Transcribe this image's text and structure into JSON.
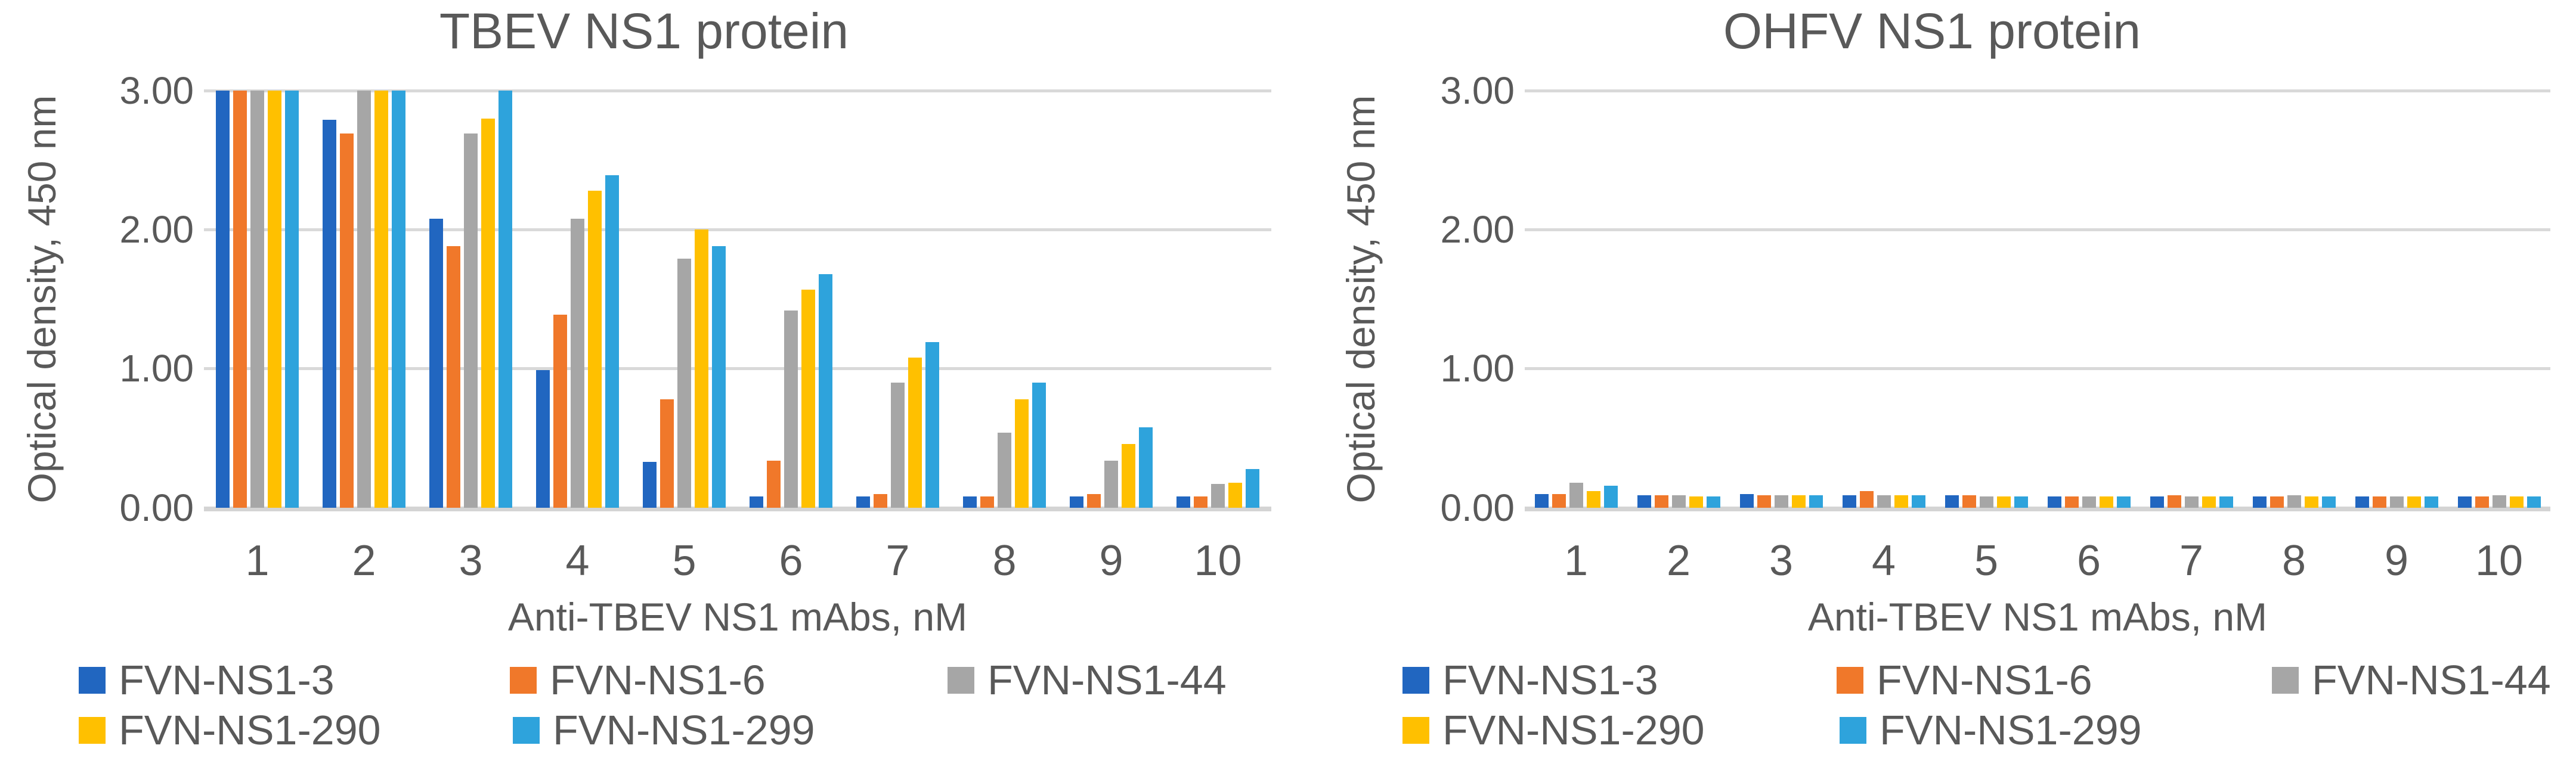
{
  "figure": {
    "text_color": "#595959",
    "gridline_color": "#D9D9D9",
    "axisline_color": "#D4D4D4",
    "background": "#FFFFFF"
  },
  "chart_data": [
    {
      "type": "bar",
      "title": "TBEV NS1 protein",
      "xlabel": "Anti-TBEV NS1 mAbs, nM",
      "ylabel": "Optical density, 450 nm",
      "ylim": [
        0,
        3
      ],
      "y_ticks": [
        "3.00",
        "2.00",
        "1.00",
        "0.00"
      ],
      "grid": "horizontal",
      "legend_position": "bottom",
      "categories": [
        "1",
        "2",
        "3",
        "4",
        "5",
        "6",
        "7",
        "8",
        "9",
        "10"
      ],
      "series": [
        {
          "name": "FVN-NS1-3",
          "color": "#2166C0",
          "values": [
            3.0,
            2.79,
            2.08,
            0.99,
            0.33,
            0.08,
            0.08,
            0.08,
            0.08,
            0.08
          ]
        },
        {
          "name": "FVN-NS1-6",
          "color": "#F0782A",
          "values": [
            3.0,
            2.69,
            1.88,
            1.39,
            0.78,
            0.34,
            0.1,
            0.08,
            0.1,
            0.08
          ]
        },
        {
          "name": "FVN-NS1-44",
          "color": "#A6A6A6",
          "values": [
            3.0,
            3.0,
            2.69,
            2.08,
            1.79,
            1.42,
            0.9,
            0.54,
            0.34,
            0.17
          ]
        },
        {
          "name": "FVN-NS1-290",
          "color": "#FFC000",
          "values": [
            3.0,
            3.0,
            2.8,
            2.28,
            2.0,
            1.57,
            1.08,
            0.78,
            0.46,
            0.18
          ]
        },
        {
          "name": "FVN-NS1-299",
          "color": "#2EA3DC",
          "values": [
            3.0,
            3.0,
            3.0,
            2.39,
            1.88,
            1.68,
            1.19,
            0.9,
            0.58,
            0.28
          ]
        }
      ]
    },
    {
      "type": "bar",
      "title": "OHFV NS1 protein",
      "xlabel": "Anti-TBEV NS1 mAbs, nM",
      "ylabel": "Optical density, 450 nm",
      "ylim": [
        0,
        3
      ],
      "y_ticks": [
        "3.00",
        "2.00",
        "1.00",
        "0.00"
      ],
      "grid": "horizontal",
      "legend_position": "bottom",
      "categories": [
        "1",
        "2",
        "3",
        "4",
        "5",
        "6",
        "7",
        "8",
        "9",
        "10"
      ],
      "series": [
        {
          "name": "FVN-NS1-3",
          "color": "#2166C0",
          "values": [
            0.1,
            0.09,
            0.1,
            0.09,
            0.09,
            0.08,
            0.08,
            0.08,
            0.08,
            0.08
          ]
        },
        {
          "name": "FVN-NS1-6",
          "color": "#F0782A",
          "values": [
            0.1,
            0.09,
            0.09,
            0.12,
            0.09,
            0.08,
            0.09,
            0.08,
            0.08,
            0.08
          ]
        },
        {
          "name": "FVN-NS1-44",
          "color": "#A6A6A6",
          "values": [
            0.18,
            0.09,
            0.09,
            0.09,
            0.08,
            0.08,
            0.08,
            0.09,
            0.08,
            0.09
          ]
        },
        {
          "name": "FVN-NS1-290",
          "color": "#FFC000",
          "values": [
            0.12,
            0.08,
            0.09,
            0.09,
            0.08,
            0.08,
            0.08,
            0.08,
            0.08,
            0.08
          ]
        },
        {
          "name": "FVN-NS1-299",
          "color": "#2EA3DC",
          "values": [
            0.16,
            0.08,
            0.09,
            0.09,
            0.08,
            0.08,
            0.08,
            0.08,
            0.08,
            0.08
          ]
        }
      ]
    }
  ]
}
